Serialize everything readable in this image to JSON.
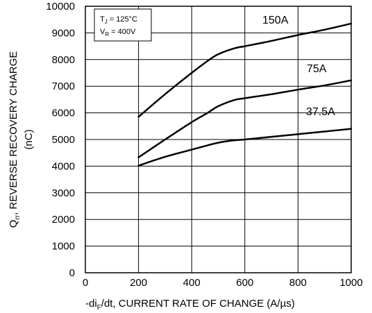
{
  "chart_data": {
    "type": "line",
    "xlabel_parts": {
      "pre": "-di",
      "sub": "F",
      "post": "/dt, CURRENT RATE OF CHANGE (A/µs)"
    },
    "ylabel_parts": {
      "pre": "Q",
      "sub": "rr",
      "post": ", REVERSE RECOVERY CHARGE"
    },
    "ylabel_unit": "(nC)",
    "xlim": [
      0,
      1000
    ],
    "ylim": [
      0,
      10000
    ],
    "xticks": [
      0,
      200,
      400,
      600,
      800,
      1000
    ],
    "yticks": [
      0,
      1000,
      2000,
      3000,
      4000,
      5000,
      6000,
      7000,
      8000,
      9000,
      10000
    ],
    "grid": true,
    "conditions": [
      {
        "pre": "T",
        "sub": "J",
        "post": " = 125°C"
      },
      {
        "pre": "V",
        "sub": "R",
        "post": " = 400V"
      }
    ],
    "series": [
      {
        "name": "150A",
        "x": [
          200,
          300,
          400,
          460,
          500,
          560,
          600,
          700,
          800,
          900,
          1000
        ],
        "y": [
          5850,
          6700,
          7500,
          7950,
          8200,
          8420,
          8500,
          8700,
          8920,
          9120,
          9350
        ]
      },
      {
        "name": "75A",
        "x": [
          200,
          300,
          400,
          460,
          500,
          560,
          600,
          700,
          800,
          900,
          1000
        ],
        "y": [
          4330,
          5000,
          5650,
          6000,
          6250,
          6480,
          6550,
          6700,
          6870,
          7030,
          7220
        ]
      },
      {
        "name": "37.5A",
        "x": [
          200,
          300,
          400,
          460,
          500,
          560,
          600,
          700,
          800,
          900,
          1000
        ],
        "y": [
          4020,
          4350,
          4620,
          4780,
          4880,
          4970,
          5000,
          5100,
          5200,
          5300,
          5400
        ]
      }
    ]
  }
}
